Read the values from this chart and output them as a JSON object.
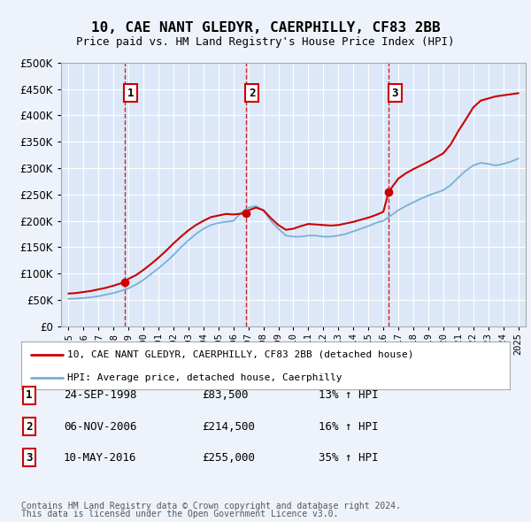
{
  "title": "10, CAE NANT GLEDYR, CAERPHILLY, CF83 2BB",
  "subtitle": "Price paid vs. HM Land Registry's House Price Index (HPI)",
  "background_color": "#eef3fb",
  "plot_bg_color": "#dce8f8",
  "legend_line1": "10, CAE NANT GLEDYR, CAERPHILLY, CF83 2BB (detached house)",
  "legend_line2": "HPI: Average price, detached house, Caerphilly",
  "footer1": "Contains HM Land Registry data © Crown copyright and database right 2024.",
  "footer2": "This data is licensed under the Open Government Licence v3.0.",
  "sale_points": [
    {
      "label": "1",
      "year": 1998.73,
      "value": 83500
    },
    {
      "label": "2",
      "year": 2006.85,
      "value": 214500
    },
    {
      "label": "3",
      "year": 2016.36,
      "value": 255000
    }
  ],
  "sale_table": [
    {
      "num": "1",
      "date": "24-SEP-1998",
      "price": "£83,500",
      "hpi": "13% ↑ HPI"
    },
    {
      "num": "2",
      "date": "06-NOV-2006",
      "price": "£214,500",
      "hpi": "16% ↑ HPI"
    },
    {
      "num": "3",
      "date": "10-MAY-2016",
      "price": "£255,000",
      "hpi": "35% ↑ HPI"
    }
  ],
  "hpi_line_color": "#7ab0d4",
  "price_line_color": "#cc0000",
  "vline_color": "#cc0000",
  "ylim": [
    0,
    500000
  ],
  "yticks": [
    0,
    50000,
    100000,
    150000,
    200000,
    250000,
    300000,
    350000,
    400000,
    450000,
    500000
  ],
  "xmin": 1994.5,
  "xmax": 2025.5,
  "hpi_years": [
    1995.0,
    1995.5,
    1996.0,
    1996.5,
    1997.0,
    1997.5,
    1998.0,
    1998.5,
    1999.0,
    1999.5,
    2000.0,
    2000.5,
    2001.0,
    2001.5,
    2002.0,
    2002.5,
    2003.0,
    2003.5,
    2004.0,
    2004.5,
    2005.0,
    2005.5,
    2006.0,
    2006.5,
    2007.0,
    2007.5,
    2008.0,
    2008.5,
    2009.0,
    2009.5,
    2010.0,
    2010.5,
    2011.0,
    2011.5,
    2012.0,
    2012.5,
    2013.0,
    2013.5,
    2014.0,
    2014.5,
    2015.0,
    2015.5,
    2016.0,
    2016.5,
    2017.0,
    2017.5,
    2018.0,
    2018.5,
    2019.0,
    2019.5,
    2020.0,
    2020.5,
    2021.0,
    2021.5,
    2022.0,
    2022.5,
    2023.0,
    2023.5,
    2024.0,
    2024.5,
    2025.0
  ],
  "hpi_values": [
    52000,
    52500,
    53500,
    55000,
    57000,
    60000,
    63000,
    67000,
    72000,
    79000,
    88000,
    99000,
    110000,
    122000,
    135000,
    150000,
    163000,
    175000,
    185000,
    192000,
    196000,
    198000,
    200000,
    215000,
    225000,
    228000,
    220000,
    200000,
    185000,
    172000,
    170000,
    170000,
    172000,
    172000,
    170000,
    170000,
    172000,
    175000,
    180000,
    185000,
    190000,
    196000,
    200000,
    210000,
    220000,
    228000,
    235000,
    242000,
    248000,
    253000,
    258000,
    268000,
    282000,
    295000,
    305000,
    310000,
    308000,
    305000,
    308000,
    312000,
    318000
  ],
  "price_years": [
    1995.0,
    1995.5,
    1996.0,
    1996.5,
    1997.0,
    1997.5,
    1998.0,
    1998.73,
    1999.0,
    1999.5,
    2000.0,
    2000.5,
    2001.0,
    2001.5,
    2002.0,
    2002.5,
    2003.0,
    2003.5,
    2004.0,
    2004.5,
    2005.0,
    2005.5,
    2006.0,
    2006.85,
    2007.0,
    2007.5,
    2008.0,
    2008.5,
    2009.0,
    2009.5,
    2010.0,
    2010.5,
    2011.0,
    2011.5,
    2012.0,
    2012.5,
    2013.0,
    2013.5,
    2014.0,
    2014.5,
    2015.0,
    2015.5,
    2016.0,
    2016.36,
    2017.0,
    2017.5,
    2018.0,
    2018.5,
    2019.0,
    2019.5,
    2020.0,
    2020.5,
    2021.0,
    2021.5,
    2022.0,
    2022.5,
    2023.0,
    2023.5,
    2024.0,
    2024.5,
    2025.0
  ],
  "price_values": [
    62000,
    63000,
    65000,
    67000,
    70000,
    73000,
    77000,
    83500,
    90000,
    97000,
    107000,
    118000,
    130000,
    143000,
    157000,
    170000,
    182000,
    192000,
    200000,
    207000,
    210000,
    213000,
    212000,
    214500,
    220000,
    225000,
    220000,
    205000,
    192000,
    183000,
    185000,
    190000,
    194000,
    193000,
    192000,
    191000,
    192000,
    195000,
    198000,
    202000,
    206000,
    211000,
    217000,
    255000,
    280000,
    290000,
    298000,
    305000,
    312000,
    320000,
    328000,
    345000,
    370000,
    392000,
    415000,
    428000,
    432000,
    436000,
    438000,
    440000,
    442000
  ]
}
